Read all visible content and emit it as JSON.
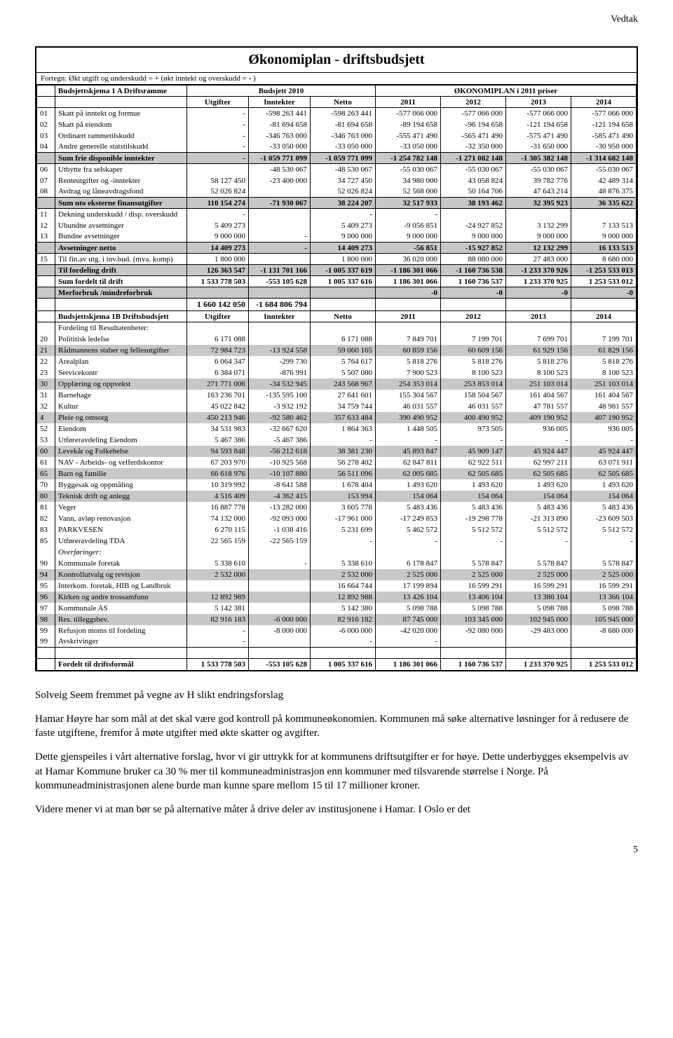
{
  "header_right": "Vedtak",
  "table": {
    "title": "Økonomiplan - driftsbudsjett",
    "sign_note": "Fortegn: Økt utgift og underskudd = +    (økt inntekt og overskudd = - )",
    "section1": {
      "title": "Budsjettskjema 1 A   Driftsramme",
      "group_b2010": "Budsjett 2010",
      "group_plan": "ØKONOMIPLAN i 2011  priser",
      "cols": [
        "Utgifter",
        "Inntekter",
        "Netto",
        "2011",
        "2012",
        "2013",
        "2014"
      ]
    },
    "rows1": [
      {
        "code": "01",
        "label": "Skatt på inntekt og formue",
        "v": [
          "-",
          "-598 263 441",
          "-598 263 441",
          "-577 066 000",
          "-577 066 000",
          "-577 066 000",
          "-577 066 000"
        ]
      },
      {
        "code": "02",
        "label": "Skatt på eiendom",
        "v": [
          "-",
          "-81 694 658",
          "-81 694 658",
          "-89 194 658",
          "-96 194 658",
          "-121 194 658",
          "-121 194 658"
        ]
      },
      {
        "code": "03",
        "label": "Ordinært rammetilskudd",
        "v": [
          "-",
          "-346 763 000",
          "-346 763 000",
          "-555 471 490",
          "-565 471 490",
          "-575 471 490",
          "-585 471 490"
        ]
      },
      {
        "code": "04",
        "label": "Andre generelle statstilskudd",
        "v": [
          "-",
          "-33 050 000",
          "-33 050 000",
          "-33 050 000",
          "-32 350 000",
          "-31 650 000",
          "-30 950 000"
        ]
      }
    ],
    "sum_frie": {
      "label": "Sum frie disponible inntekter",
      "v": [
        "-",
        "-1 059 771 099",
        "-1 059 771 099",
        "-1 254 782 148",
        "-1 271 082 148",
        "-1 305 382 148",
        "-1 314 682 148"
      ]
    },
    "rows2": [
      {
        "code": "06",
        "label": "Utbytte fra selskaper",
        "v": [
          "",
          "-48 530 067",
          "-48 530 067",
          "-55 030 067",
          "-55 030 067",
          "-55 030 067",
          "-55 030 067"
        ]
      },
      {
        "code": "07",
        "label": "Renteutgifter og -inntekter",
        "v": [
          "58 127 450",
          "-23 400 000",
          "34 727 450",
          "34 980 000",
          "43 058 824",
          "39 782 776",
          "42 489 314"
        ]
      },
      {
        "code": "08",
        "label": "Avdrag og låneavdragsfond",
        "v": [
          "52 026 824",
          "",
          "52 026 824",
          "52 568 000",
          "50 164 706",
          "47 643 214",
          "48 876 375"
        ]
      }
    ],
    "sum_eksterne": {
      "label": "Sum nto eksterne finansutgifter",
      "v": [
        "110 154 274",
        "-71 930 067",
        "38 224 207",
        "32 517 933",
        "38 193 462",
        "32 395 923",
        "36 335 622"
      ]
    },
    "rows3": [
      {
        "code": "11",
        "label": "Dekning underskudd / disp. overskudd",
        "v": [
          "-",
          "",
          "-",
          "-",
          "",
          "",
          ""
        ]
      },
      {
        "code": "12",
        "label": "Ubundne avsetninger",
        "v": [
          "5 409 273",
          "",
          "5 409 273",
          "-9 056 851",
          "-24 927 852",
          "3 132 299",
          "7 133 513"
        ]
      },
      {
        "code": "13",
        "label": "Bundne avsetninger",
        "v": [
          "9 000 000",
          "-",
          "9 000 000",
          "9 000 000",
          "9 000 000",
          "9 000 000",
          "9 000 000"
        ]
      }
    ],
    "avset_netto": {
      "label": "Avsetninger netto",
      "v": [
        "14 409 273",
        "-",
        "14 409 273",
        "-56 851",
        "-15 927 852",
        "12 132 299",
        "16 133 513"
      ]
    },
    "tilfin": {
      "code": "15",
      "label": "Til fin.av utg. i inv.bud. (mva. komp)",
      "v": [
        "1 800 000",
        "",
        "1 800 000",
        "36 020 000",
        "88 080 000",
        "27 483 000",
        "8 680 000"
      ]
    },
    "sums_block": [
      {
        "label": "Til fordeling drift",
        "v": [
          "126 363 547",
          "-1 131 701 166",
          "-1 005 337 619",
          "-1 186 301 066",
          "-1 160 736 538",
          "-1 233 370 926",
          "-1 253 533 013"
        ],
        "grey": true,
        "bold": true
      },
      {
        "label": "Sum fordelt til drift",
        "v": [
          "1 533 778 503",
          "-553 105 628",
          "1 005 337 616",
          "1 186 301 066",
          "1 160 736 537",
          "1 233 370 925",
          "1 253 533 012"
        ],
        "bold": true
      },
      {
        "label": "Merforbruk /mindreforbruk",
        "v": [
          "",
          "",
          "",
          "-0",
          "-0",
          "-0",
          "-0"
        ],
        "grey": true,
        "bold": true
      }
    ],
    "big_numbers": [
      "1 660 142 050",
      "-1 684 806 794"
    ],
    "section2": {
      "title": "Budsjettskjema 1B Driftsbudsjett",
      "cols": [
        "Utgifter",
        "Inntekter",
        "Netto",
        "2011",
        "2012",
        "2013",
        "2014"
      ]
    },
    "fordeling_label": "Fordeling til Resultatenheter:",
    "rows4": [
      {
        "code": "20",
        "label": "Polititisk ledelse",
        "v": [
          "6 171 088",
          "",
          "6 171 088",
          "7 849 701",
          "7 199 701",
          "7 699 701",
          "7 199 701"
        ]
      },
      {
        "code": "21",
        "label": "Rådmannens staber og fellesutgifter",
        "v": [
          "72 984 723",
          "-13 924 558",
          "59 060 165",
          "60 859 156",
          "60 609 156",
          "61 929 156",
          "61 829 156"
        ],
        "grey": true
      },
      {
        "code": "22",
        "label": "Arealplan",
        "v": [
          "6 064 347",
          "-299 730",
          "5 764 617",
          "5 818 276",
          "5 818 276",
          "5 818 276",
          "5 818 276"
        ]
      },
      {
        "code": "23",
        "label": "Servicekontr",
        "v": [
          "6 384 071",
          "-876 991",
          "5 507 080",
          "7 900 523",
          "8 100 523",
          "8 100 523",
          "8 100 523"
        ]
      },
      {
        "code": "30",
        "label": "Opplæring og oppvekst",
        "v": [
          "271 771 006",
          "-34 532 945",
          "243 568 967",
          "254 353 014",
          "253 853 014",
          "251 103 014",
          "251 103 014"
        ],
        "grey": true
      },
      {
        "code": "31",
        "label": "Barnehage",
        "v": [
          "163 236 701",
          "-135 595 100",
          "27 641 601",
          "155 304 567",
          "158 504 567",
          "161 404 567",
          "161 404 567"
        ]
      },
      {
        "code": "32",
        "label": "Kultur",
        "v": [
          "45 022 842",
          "-3 932 192",
          "34 759 744",
          "46 031 557",
          "46 031 557",
          "47 781 557",
          "48 981 557"
        ]
      },
      {
        "code": "4",
        "label": "Pleie og omsorg",
        "v": [
          "450 213 946",
          "-92 580 462",
          "357 633 484",
          "390 490 952",
          "400 490 952",
          "409 190 952",
          "407 190 952"
        ],
        "grey": true
      },
      {
        "code": "52",
        "label": "Eiendom",
        "v": [
          "34 531 983",
          "-32 667 620",
          "1 864 363",
          "1 448 505",
          "973 505",
          "936 005",
          "936 005"
        ]
      },
      {
        "code": "53",
        "label": "Utføreravdeling Eiendom",
        "v": [
          "5 467 386",
          "-5 467 386",
          "-",
          "-",
          "-",
          "-",
          "-"
        ]
      },
      {
        "code": "60",
        "label": "Levekår og Folkehelse",
        "v": [
          "94 593 848",
          "-56 212 618",
          "38 381 230",
          "45 893 847",
          "45 909 147",
          "45 924 447",
          "45 924 447"
        ],
        "grey": true
      },
      {
        "code": "61",
        "label": "NAV - Arbeids- og velferdskontor",
        "v": [
          "67 203 970",
          "-10 925 568",
          "56 278 402",
          "62 847 811",
          "62 922 511",
          "62 997 211",
          "63 071 911"
        ]
      },
      {
        "code": "65",
        "label": "Barn og familie",
        "v": [
          "66 618 976",
          "-10 107 880",
          "56 511 096",
          "62 005 685",
          "62 505 685",
          "62 505 685",
          "62 505 685"
        ],
        "grey": true
      },
      {
        "code": "70",
        "label": "Byggesak og oppmåling",
        "v": [
          "10 319 992",
          "-8 641 588",
          "1 678 404",
          "1 493 620",
          "1 493 620",
          "1 493 620",
          "1 493 620"
        ]
      },
      {
        "code": "80",
        "label": "Teknisk drift og anlegg",
        "v": [
          "4 516 409",
          "-4 362 415",
          "153 994",
          "154 064",
          "154 064",
          "154 064",
          "154 064"
        ],
        "grey": true
      },
      {
        "code": "81",
        "label": "Veger",
        "v": [
          "16 887 778",
          "-13 282 000",
          "3 605 778",
          "5 483 436",
          "5 483 436",
          "5 483 436",
          "5 483 436"
        ]
      },
      {
        "code": "82",
        "label": "Vann, avløp renovasjon",
        "v": [
          "74 132 000",
          "-92 093 000",
          "-17 961 000",
          "-17 249 853",
          "-19 298 778",
          "-21 313 890",
          "-23 609 503"
        ]
      },
      {
        "code": "83",
        "label": "PARKVESEN",
        "v": [
          "6 270 115",
          "-1 038 416",
          "5 231 699",
          "5 462 572",
          "5 512 572",
          "5 512 572",
          "5 512 572"
        ]
      },
      {
        "code": "85",
        "label": "Utføreravdeling TDA",
        "v": [
          "22 565 159",
          "-22 565 159",
          "-",
          "-",
          "-",
          "-",
          "-"
        ]
      }
    ],
    "overforing_label": "Overføringer:",
    "rows5": [
      {
        "code": "90",
        "label": "Kommunale foretak",
        "v": [
          "5 338 610",
          "-",
          "5 338 610",
          "6 178 847",
          "5 578 847",
          "5 578 847",
          "5 578 847"
        ]
      },
      {
        "code": "94",
        "label": "Kontrollutvalg og revisjon",
        "v": [
          "2 532 000",
          "",
          "2 532 000",
          "2 525 000",
          "2 525 000",
          "2 525 000",
          "2 525 000"
        ],
        "grey": true
      },
      {
        "code": "95",
        "label": "Interkom. foretak, HIB og Landbruk",
        "v": [
          "",
          "",
          "16 664 744",
          "17 199 894",
          "16 599 291",
          "16 599 291",
          "16 599 291"
        ]
      },
      {
        "code": "96",
        "label": "Kirken og andre trossamfunn",
        "v": [
          "12 892 989",
          "",
          "12 892 988",
          "13 426 104",
          "13 406 104",
          "13 386 104",
          "13 366 104"
        ],
        "grey": true
      },
      {
        "code": "97",
        "label": "Kommunale AS",
        "v": [
          "5 142 381",
          "",
          "5 142 380",
          "5 098 788",
          "5 098 788",
          "5 098 788",
          "5 098 788"
        ]
      },
      {
        "code": "98",
        "label": "Res. tilleggsbev.",
        "v": [
          "82 916 183",
          "-6 000 000",
          "82 916 182",
          "87 745 000",
          "103 345 000",
          "102 945 000",
          "105 945 000"
        ],
        "grey": true
      },
      {
        "code": "99",
        "label": "Refusjon moms til fordeling",
        "v": [
          "-",
          "-8 000 000",
          "-6 000 000",
          "-42 020 000",
          "-92 080 000",
          "-29 483 000",
          "-8 680 000"
        ]
      },
      {
        "code": "99",
        "label": "Avskrivinger",
        "v": [
          "-",
          "",
          "-",
          "-",
          "",
          "",
          ""
        ]
      }
    ],
    "fordelt_drift": {
      "label": "Fordelt til driftsformål",
      "v": [
        "1 533 778 503",
        "-553 105 628",
        "1 005 337 616",
        "1 186 301 066",
        "1 160 736 537",
        "1 233 370 925",
        "1 253 533 012"
      ]
    }
  },
  "body": {
    "p1": "Solveig Seem fremmet på vegne av H slikt endringsforslag",
    "p2": "Hamar Høyre har som mål at det skal være god kontroll på kommuneøkonomien. Kommunen må søke alternative løsninger for å redusere de faste utgiftene, fremfor å møte utgifter med økte skatter og avgifter.",
    "p3": "Dette gjenspeiles i vårt alternative forslag, hvor vi gir uttrykk for at kommunens driftsutgifter er for høye. Dette underbygges eksempelvis av at Hamar Kommune bruker ca 30 % mer til kommuneadministrasjon enn kommuner med tilsvarende størrelse i Norge. På kommuneadministrasjonen alene burde man kunne spare mellom 15 til 17 millioner kroner.",
    "p4": "Videre mener vi at man bør se på alternative måter å drive deler av institusjonene i Hamar. I Oslo er det"
  },
  "page_number": "5"
}
